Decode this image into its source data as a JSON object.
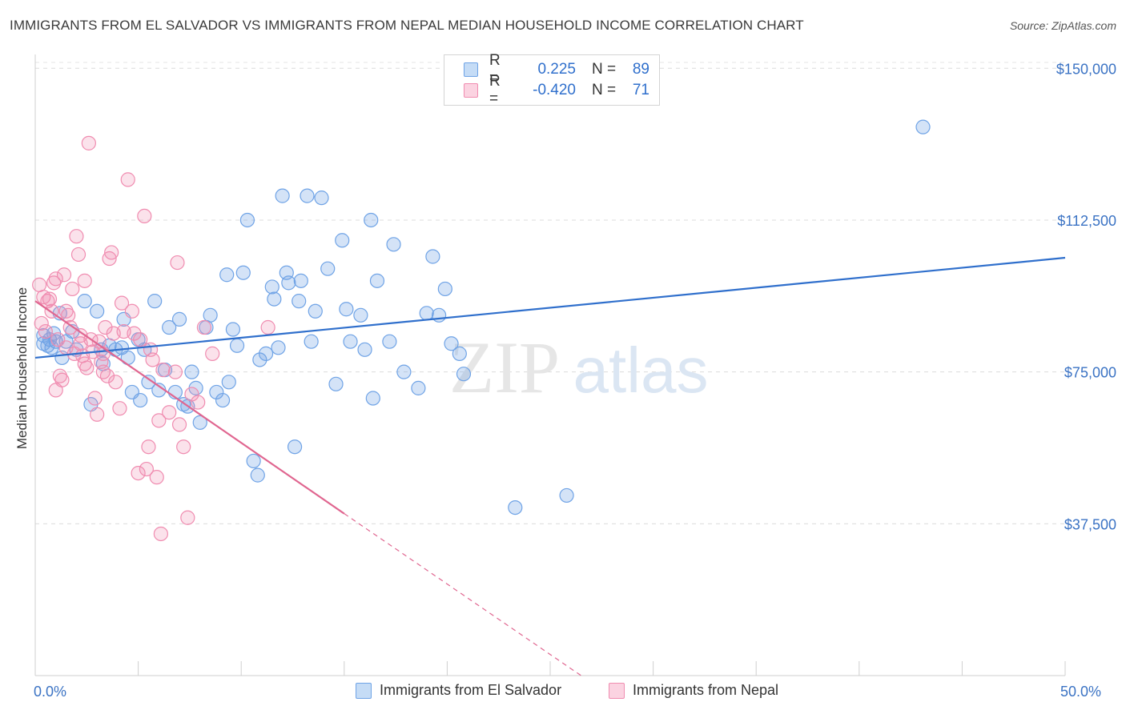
{
  "title": "IMMIGRANTS FROM EL SALVADOR VS IMMIGRANTS FROM NEPAL MEDIAN HOUSEHOLD INCOME CORRELATION CHART",
  "source": "Source: ZipAtlas.com",
  "watermark": {
    "zip": "ZIP",
    "atlas": "atlas"
  },
  "legend": {
    "rows": [
      {
        "r_label": "R =",
        "r_value": "0.225",
        "n_label": "N =",
        "n_value": "89"
      },
      {
        "r_label": "R =",
        "r_value": "-0.420",
        "n_label": "N =",
        "n_value": "71"
      }
    ]
  },
  "chart_data": {
    "type": "scatter",
    "title": "IMMIGRANTS FROM EL SALVADOR VS IMMIGRANTS FROM NEPAL MEDIAN HOUSEHOLD INCOME CORRELATION CHART",
    "xlabel": "",
    "ylabel": "Median Household Income",
    "xlim": [
      0,
      50
    ],
    "ylim": [
      0,
      155000
    ],
    "x_tick_labels": [
      "0.0%",
      "50.0%"
    ],
    "y_ticks": [
      37500,
      75000,
      112500,
      150000
    ],
    "y_tick_labels": [
      "$37,500",
      "$75,000",
      "$112,500",
      "$150,000"
    ],
    "grid": true,
    "legend_position": "top-center",
    "colors": {
      "el_salvador": "#6fa3e6",
      "nepal": "#f08cb0",
      "blue_line": "#2f6fcc",
      "pink_line": "#e06690",
      "axis_text": "#3b73c4"
    },
    "series": [
      {
        "name": "Immigrants from El Salvador",
        "r": 0.225,
        "n": 89,
        "trend": {
          "x0": 0.0,
          "y0": 78500,
          "x1": 50.0,
          "y1": 103200
        },
        "points": [
          [
            0.4,
            82000
          ],
          [
            0.4,
            84000
          ],
          [
            0.7,
            83000
          ],
          [
            0.8,
            81000
          ],
          [
            0.9,
            84500
          ],
          [
            1.0,
            82500
          ],
          [
            1.2,
            89500
          ],
          [
            1.3,
            78500
          ],
          [
            1.5,
            82500
          ],
          [
            1.8,
            85000
          ],
          [
            2.0,
            80500
          ],
          [
            2.4,
            92500
          ],
          [
            2.7,
            67000
          ],
          [
            3.0,
            90000
          ],
          [
            3.2,
            80500
          ],
          [
            3.3,
            77000
          ],
          [
            3.6,
            81500
          ],
          [
            3.9,
            80500
          ],
          [
            4.2,
            81000
          ],
          [
            4.3,
            88000
          ],
          [
            4.5,
            78500
          ],
          [
            4.7,
            70000
          ],
          [
            5.0,
            83000
          ],
          [
            5.1,
            68000
          ],
          [
            5.3,
            80500
          ],
          [
            5.5,
            72500
          ],
          [
            5.8,
            92500
          ],
          [
            6.0,
            70500
          ],
          [
            6.3,
            75500
          ],
          [
            6.5,
            86000
          ],
          [
            6.8,
            70000
          ],
          [
            7.0,
            88000
          ],
          [
            7.2,
            67000
          ],
          [
            7.4,
            66500
          ],
          [
            7.6,
            75000
          ],
          [
            7.8,
            71000
          ],
          [
            8.0,
            62500
          ],
          [
            8.3,
            86000
          ],
          [
            8.5,
            89000
          ],
          [
            8.8,
            70000
          ],
          [
            9.1,
            68000
          ],
          [
            9.3,
            99000
          ],
          [
            9.4,
            72500
          ],
          [
            9.6,
            85500
          ],
          [
            9.8,
            81500
          ],
          [
            10.1,
            99500
          ],
          [
            10.3,
            112500
          ],
          [
            10.6,
            53000
          ],
          [
            10.8,
            49500
          ],
          [
            10.9,
            78000
          ],
          [
            11.2,
            79500
          ],
          [
            11.5,
            96000
          ],
          [
            11.6,
            93000
          ],
          [
            11.8,
            81000
          ],
          [
            12.0,
            118500
          ],
          [
            12.2,
            99500
          ],
          [
            12.3,
            97000
          ],
          [
            12.6,
            56500
          ],
          [
            12.8,
            92500
          ],
          [
            12.9,
            97500
          ],
          [
            13.2,
            118500
          ],
          [
            13.4,
            82500
          ],
          [
            13.6,
            90000
          ],
          [
            13.9,
            118000
          ],
          [
            14.2,
            100500
          ],
          [
            14.6,
            72000
          ],
          [
            14.9,
            107500
          ],
          [
            15.1,
            90500
          ],
          [
            15.3,
            82500
          ],
          [
            15.8,
            89000
          ],
          [
            16.0,
            80500
          ],
          [
            16.3,
            112500
          ],
          [
            16.4,
            68500
          ],
          [
            16.6,
            97500
          ],
          [
            17.2,
            82500
          ],
          [
            17.4,
            106500
          ],
          [
            17.9,
            75000
          ],
          [
            18.6,
            71000
          ],
          [
            19.0,
            89500
          ],
          [
            19.3,
            103500
          ],
          [
            19.6,
            89000
          ],
          [
            19.9,
            95500
          ],
          [
            20.2,
            82000
          ],
          [
            20.6,
            79500
          ],
          [
            20.8,
            74500
          ],
          [
            23.3,
            41500
          ],
          [
            25.8,
            44500
          ],
          [
            43.1,
            135500
          ],
          [
            0.6,
            81500
          ]
        ]
      },
      {
        "name": "Immigrants from Nepal",
        "r": -0.42,
        "n": 71,
        "trend": {
          "x0": 0.0,
          "y0": 92500,
          "x1": 15.0,
          "y1": 40000,
          "dash_x1": 26.5,
          "dash_y1": 0
        },
        "points": [
          [
            0.2,
            96500
          ],
          [
            0.3,
            87000
          ],
          [
            0.4,
            93500
          ],
          [
            0.5,
            85000
          ],
          [
            0.6,
            92500
          ],
          [
            0.7,
            93000
          ],
          [
            0.8,
            90000
          ],
          [
            0.9,
            97000
          ],
          [
            1.0,
            98000
          ],
          [
            1.0,
            70500
          ],
          [
            1.1,
            83000
          ],
          [
            1.2,
            74000
          ],
          [
            1.3,
            73000
          ],
          [
            1.4,
            99000
          ],
          [
            1.5,
            90000
          ],
          [
            1.5,
            81000
          ],
          [
            1.7,
            86000
          ],
          [
            1.8,
            95500
          ],
          [
            1.9,
            79500
          ],
          [
            2.0,
            108500
          ],
          [
            2.1,
            104000
          ],
          [
            2.2,
            82000
          ],
          [
            2.3,
            79000
          ],
          [
            2.4,
            77000
          ],
          [
            2.4,
            97500
          ],
          [
            2.5,
            76000
          ],
          [
            2.6,
            131500
          ],
          [
            2.7,
            83000
          ],
          [
            2.8,
            80000
          ],
          [
            2.9,
            68500
          ],
          [
            3.0,
            64500
          ],
          [
            3.1,
            82500
          ],
          [
            3.2,
            77500
          ],
          [
            3.3,
            79500
          ],
          [
            3.3,
            75000
          ],
          [
            3.4,
            86000
          ],
          [
            3.5,
            74000
          ],
          [
            3.6,
            103000
          ],
          [
            3.7,
            104500
          ],
          [
            3.8,
            84500
          ],
          [
            3.9,
            72500
          ],
          [
            4.1,
            66000
          ],
          [
            4.2,
            92000
          ],
          [
            4.3,
            85000
          ],
          [
            4.5,
            122500
          ],
          [
            4.7,
            90000
          ],
          [
            4.8,
            84500
          ],
          [
            5.0,
            50000
          ],
          [
            5.1,
            83000
          ],
          [
            5.3,
            113500
          ],
          [
            5.4,
            51000
          ],
          [
            5.5,
            56500
          ],
          [
            5.6,
            80500
          ],
          [
            5.7,
            78000
          ],
          [
            5.9,
            49000
          ],
          [
            6.0,
            63000
          ],
          [
            6.1,
            35000
          ],
          [
            6.2,
            75500
          ],
          [
            6.5,
            65000
          ],
          [
            6.8,
            75000
          ],
          [
            6.9,
            102000
          ],
          [
            7.0,
            62000
          ],
          [
            7.2,
            56500
          ],
          [
            7.4,
            39000
          ],
          [
            7.6,
            69500
          ],
          [
            7.9,
            67500
          ],
          [
            8.2,
            86000
          ],
          [
            8.6,
            79500
          ],
          [
            11.3,
            86000
          ],
          [
            1.6,
            89000
          ],
          [
            2.2,
            84000
          ]
        ]
      }
    ]
  },
  "bottom_legend": [
    "Immigrants from El Salvador",
    "Immigrants from Nepal"
  ]
}
